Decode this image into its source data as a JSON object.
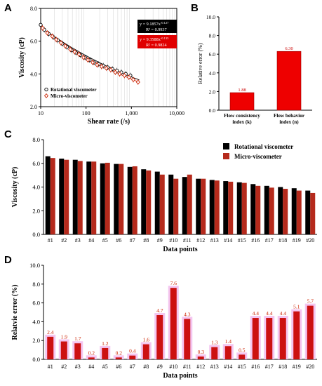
{
  "panels": {
    "a": {
      "label": "A",
      "chart_data": {
        "type": "scatter",
        "xlabel": "Shear rate (/s)",
        "ylabel": "Viscosity (cP)",
        "x_scale": "log",
        "xlim": [
          10,
          10000
        ],
        "ylim": [
          2.0,
          8.0
        ],
        "xticks": [
          "10",
          "100",
          "1,000",
          "10,000"
        ],
        "yticks": [
          "2.0",
          "4.0",
          "6.0",
          "8.0"
        ],
        "legend_position": "bottom-left",
        "series": [
          {
            "name": "Rotational viscometer",
            "marker": "open-circle",
            "color": "#000000",
            "x": [
              10,
              12,
              15,
              19,
              24,
              30,
              38,
              48,
              60,
              75,
              95,
              120,
              150,
              190,
              240,
              300,
              380,
              480,
              600,
              750,
              950
            ],
            "y": [
              7.0,
              6.7,
              6.45,
              6.25,
              6.05,
              5.85,
              5.65,
              5.45,
              5.3,
              5.15,
              5.0,
              4.85,
              4.7,
              4.6,
              4.5,
              4.4,
              4.3,
              4.2,
              4.1,
              4.0,
              3.9
            ]
          },
          {
            "name": "Micro-viscometer",
            "marker": "open-diamond",
            "color": "#cc2200",
            "x": [
              11,
              14,
              18,
              22,
              28,
              35,
              45,
              56,
              70,
              88,
              110,
              140,
              175,
              220,
              280,
              350,
              440,
              550,
              700,
              880,
              1100,
              1400
            ],
            "y": [
              6.8,
              6.5,
              6.3,
              6.1,
              5.9,
              5.7,
              5.5,
              5.35,
              5.2,
              5.0,
              4.85,
              4.7,
              4.55,
              4.45,
              4.35,
              4.25,
              4.1,
              4.0,
              3.9,
              3.8,
              3.65,
              3.5
            ]
          }
        ],
        "annotations": [
          {
            "text": "y = 9.1857x-0.127",
            "r2": "R² = 0.9937",
            "background": "#000000",
            "color": "#ffffff"
          },
          {
            "text": "y = 9.3588x-0.135",
            "r2": "R² = 0.9824",
            "background": "#e00000",
            "color": "#ffffff"
          }
        ]
      }
    },
    "b": {
      "label": "B",
      "chart_data": {
        "type": "bar",
        "categories": [
          "Flow consistency|index (k)",
          "Flow behavior|index (n)"
        ],
        "values": [
          1.88,
          6.3
        ],
        "data_labels": [
          "1.88",
          "6.30"
        ],
        "ylabel": "Relative error (%)",
        "ylim": [
          0,
          10
        ],
        "yticks": [
          "0.0",
          "2.0",
          "4.0",
          "6.0",
          "8.0",
          "10.0"
        ],
        "bar_color": "#ee0000"
      }
    },
    "c": {
      "label": "C",
      "chart_data": {
        "type": "bar",
        "categories": [
          "#1",
          "#2",
          "#3",
          "#4",
          "#5",
          "#6",
          "#7",
          "#8",
          "#9",
          "#10",
          "#11",
          "#12",
          "#13",
          "#14",
          "#15",
          "#16",
          "#17",
          "#18",
          "#19",
          "#20"
        ],
        "xlabel": "Data points",
        "ylabel": "Viscosity (cP)",
        "ylim": [
          0,
          8
        ],
        "yticks": [
          "0.0",
          "2.0",
          "4.0",
          "6.0",
          "8.0"
        ],
        "legend_position": "top-right",
        "series": [
          {
            "name": "Rotational viscometer",
            "color": "#000000",
            "values": [
              6.6,
              6.4,
              6.3,
              6.15,
              6.0,
              5.95,
              5.7,
              5.5,
              5.3,
              5.05,
              4.85,
              4.7,
              4.6,
              4.5,
              4.4,
              4.25,
              4.1,
              4.0,
              3.9,
              3.7
            ]
          },
          {
            "name": "Micro-viscometer",
            "color": "#b52a1c",
            "values": [
              6.45,
              6.3,
              6.2,
              6.15,
              6.05,
              5.95,
              5.75,
              5.4,
              5.05,
              4.7,
              5.05,
              4.7,
              4.55,
              4.45,
              4.35,
              4.1,
              3.95,
              3.85,
              3.7,
              3.5
            ]
          }
        ]
      }
    },
    "d": {
      "label": "D",
      "chart_data": {
        "type": "bar",
        "categories": [
          "#1",
          "#2",
          "#3",
          "#4",
          "#5",
          "#6",
          "#7",
          "#8",
          "#9",
          "#10",
          "#11",
          "#12",
          "#13",
          "#14",
          "#15",
          "#16",
          "#17",
          "#18",
          "#19",
          "#20"
        ],
        "values": [
          2.4,
          1.9,
          1.7,
          0.2,
          1.2,
          0.2,
          0.4,
          1.6,
          4.7,
          7.6,
          4.3,
          0.3,
          1.3,
          1.4,
          0.5,
          4.4,
          4.4,
          4.4,
          5.1,
          5.7
        ],
        "data_labels": [
          "2.4",
          "1.9",
          "1.7",
          "0.2",
          "1.2",
          "0.2",
          "0.4",
          "1.6",
          "4.7",
          "7.6",
          "4.3",
          "0.3",
          "1.3",
          "1.4",
          "0.5",
          "4.4",
          "4.4",
          "4.4",
          "5.1",
          "5.7"
        ],
        "xlabel": "Data points",
        "ylabel": "Relatvie error (%)",
        "ylim": [
          0,
          10
        ],
        "yticks": [
          "0.0",
          "2.0",
          "4.0",
          "6.0",
          "8.0",
          "10.0"
        ],
        "bar_color": "#cc1111",
        "bar_halo_color": "#f4c6f0",
        "label_color": "#cc2200"
      }
    }
  }
}
